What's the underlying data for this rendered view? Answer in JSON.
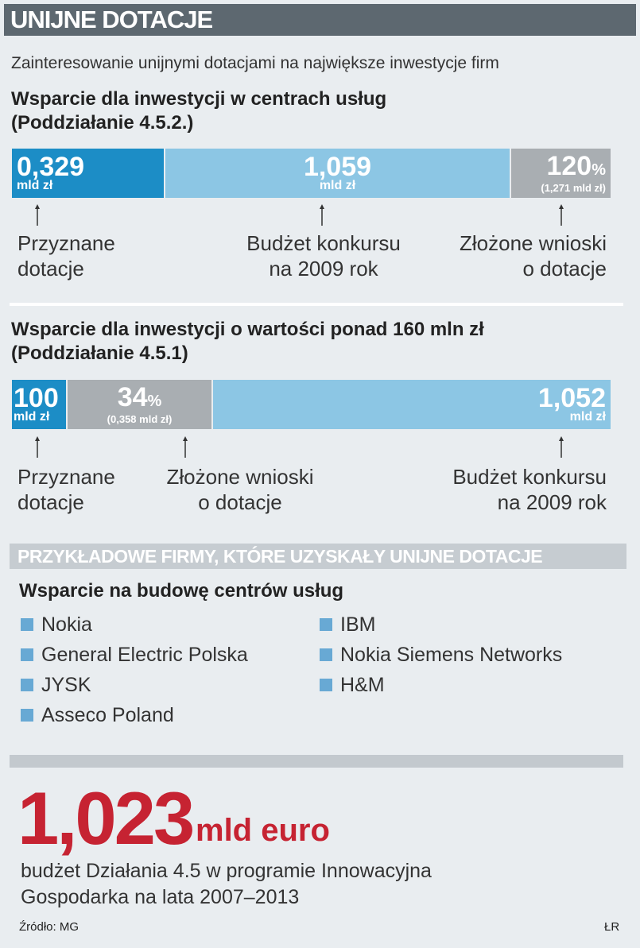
{
  "header": {
    "title": "UNIJNE DOTACJE"
  },
  "subtitle": "Zainteresowanie unijnymi dotacjami na największe inwestycje firm",
  "sections": [
    {
      "title": [
        "Wsparcie dla inwestycji w centrach usług",
        "(Poddziałanie 4.5.2.)"
      ],
      "segments": [
        {
          "value": "0,329",
          "unit": "mld zł"
        },
        {
          "value": "1,059",
          "unit": "mld zł"
        },
        {
          "value": "120",
          "unit": "%",
          "note": "(1,271 mld zł)"
        }
      ],
      "labels": [
        [
          "Przyznane",
          "dotacje"
        ],
        [
          "Budżet konkursu",
          "na 2009 rok"
        ],
        [
          "Złożone wnioski",
          "o dotacje"
        ]
      ]
    },
    {
      "title": [
        "Wsparcie dla inwestycji o wartości ponad 160 mln zł",
        "(Poddziałanie 4.5.1)"
      ],
      "segments": [
        {
          "value": "100",
          "unit": "mld zł"
        },
        {
          "value": "34",
          "unit": "%",
          "note": "(0,358 mld zł)"
        },
        {
          "value": "1,052",
          "unit": "mld zł"
        }
      ],
      "labels": [
        [
          "Przyznane",
          "dotacje"
        ],
        [
          "Złożone wnioski",
          "o dotacje"
        ],
        [
          "Budżet konkursu",
          "na 2009 rok"
        ]
      ]
    }
  ],
  "examples": {
    "heading": "PRZYKŁADOWE FIRMY, KTÓRE UZYSKAŁY UNIJNE DOTACJE",
    "subheading": "Wsparcie na budowę centrów usług",
    "columns": [
      [
        "Nokia",
        "General Electric Polska",
        "JYSK",
        "Asseco Poland"
      ],
      [
        "IBM",
        "Nokia Siemens Networks",
        "H&M"
      ]
    ]
  },
  "footer": {
    "value": "1,023",
    "unit": "mld euro",
    "description": [
      "budżet Działania 4.5 w programie Innowacyjna",
      "Gospodarka na lata 2007–2013"
    ],
    "source": "Źródło: MG",
    "credit": "ŁR"
  }
}
